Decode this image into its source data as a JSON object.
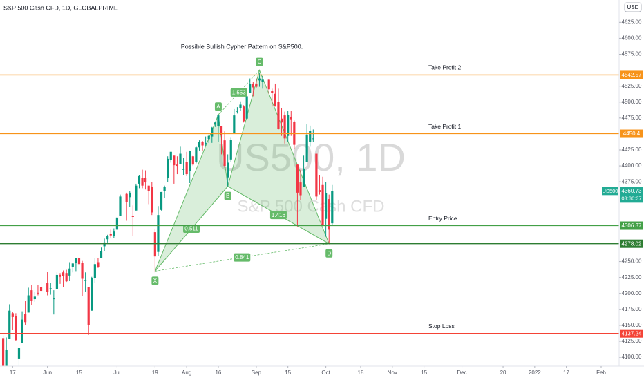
{
  "chart_data": {
    "type": "candlestick",
    "header": "S&P 500 Cash CFD, 1D, GLOBALPRIME",
    "title": "Possible Bullish Cypher Pattern on S&P500.",
    "watermark": "US500, 1D",
    "watermark_subtitle": "S&P 500 Cash CFD",
    "currency": "USD",
    "up_color": "#089981",
    "down_color": "#f23645",
    "xlim": [
      "2021-05-11",
      "2022-02-01"
    ],
    "ylim": [
      4086,
      4660
    ],
    "x": [
      "2021-05-12",
      "2021-05-13",
      "2021-05-14",
      "2021-05-17",
      "2021-05-18",
      "2021-05-19",
      "2021-05-20",
      "2021-05-21",
      "2021-05-24",
      "2021-05-25",
      "2021-05-26",
      "2021-05-27",
      "2021-05-28",
      "2021-06-01",
      "2021-06-02",
      "2021-06-03",
      "2021-06-04",
      "2021-06-07",
      "2021-06-08",
      "2021-06-09",
      "2021-06-10",
      "2021-06-11",
      "2021-06-14",
      "2021-06-15",
      "2021-06-16",
      "2021-06-17",
      "2021-06-18",
      "2021-06-21",
      "2021-06-22",
      "2021-06-23",
      "2021-06-24",
      "2021-06-25",
      "2021-06-28",
      "2021-06-29",
      "2021-06-30",
      "2021-07-01",
      "2021-07-02",
      "2021-07-06",
      "2021-07-07",
      "2021-07-08",
      "2021-07-09",
      "2021-07-12",
      "2021-07-13",
      "2021-07-14",
      "2021-07-15",
      "2021-07-16",
      "2021-07-19",
      "2021-07-20",
      "2021-07-21",
      "2021-07-22",
      "2021-07-23",
      "2021-07-26",
      "2021-07-27",
      "2021-07-28",
      "2021-07-29",
      "2021-07-30",
      "2021-08-02",
      "2021-08-03",
      "2021-08-04",
      "2021-08-05",
      "2021-08-06",
      "2021-08-09",
      "2021-08-10",
      "2021-08-11",
      "2021-08-12",
      "2021-08-13",
      "2021-08-16",
      "2021-08-17",
      "2021-08-18",
      "2021-08-19",
      "2021-08-20",
      "2021-08-23",
      "2021-08-24",
      "2021-08-25",
      "2021-08-26",
      "2021-08-27",
      "2021-08-30",
      "2021-08-31",
      "2021-09-01",
      "2021-09-02",
      "2021-09-03",
      "2021-09-07",
      "2021-09-08",
      "2021-09-09",
      "2021-09-10",
      "2021-09-13",
      "2021-09-14",
      "2021-09-15",
      "2021-09-16",
      "2021-09-17",
      "2021-09-20",
      "2021-09-21",
      "2021-09-22",
      "2021-09-23",
      "2021-09-24",
      "2021-09-27",
      "2021-09-28",
      "2021-09-29",
      "2021-09-30",
      "2021-10-01",
      "2021-10-04",
      "2021-10-05"
    ],
    "open": [
      4130,
      4074,
      4129,
      4169,
      4165,
      4098,
      4122,
      4168,
      4170,
      4205,
      4191,
      4201,
      4210,
      4216,
      4207,
      4191,
      4207,
      4229,
      4233,
      4232,
      4228,
      4242,
      4248,
      4255,
      4248,
      4220,
      4210,
      4173,
      4224,
      4249,
      4256,
      4274,
      4285,
      4293,
      4290,
      4300,
      4322,
      4356,
      4351,
      4322,
      4330,
      4372,
      4381,
      4381,
      4369,
      4367,
      4296,
      4265,
      4331,
      4361,
      4381,
      4409,
      4416,
      4402,
      4403,
      4395,
      4406,
      4392,
      4415,
      4406,
      4429,
      4437,
      4435,
      4442,
      4446,
      4465,
      4462,
      4462,
      4440,
      4382,
      4410,
      4450,
      4485,
      4490,
      4493,
      4474,
      4514,
      4529,
      4528,
      4534,
      4532,
      4535,
      4518,
      4513,
      4500,
      4474,
      4479,
      4447,
      4477,
      4469,
      4402,
      4374,
      4367,
      4406,
      4438,
      4443,
      4419,
      4362,
      4370,
      4317,
      4348,
      4310
    ],
    "high": [
      4134,
      4131,
      4183,
      4171,
      4169,
      4116,
      4172,
      4188,
      4209,
      4213,
      4202,
      4213,
      4218,
      4234,
      4217,
      4205,
      4233,
      4232,
      4236,
      4237,
      4249,
      4248,
      4255,
      4257,
      4251,
      4233,
      4210,
      4226,
      4256,
      4256,
      4272,
      4286,
      4292,
      4300,
      4302,
      4320,
      4355,
      4358,
      4361,
      4338,
      4372,
      4386,
      4394,
      4393,
      4369,
      4375,
      4301,
      4337,
      4359,
      4369,
      4415,
      4422,
      4416,
      4415,
      4430,
      4412,
      4422,
      4424,
      4416,
      4430,
      4440,
      4439,
      4446,
      4449,
      4461,
      4468,
      4480,
      4462,
      4454,
      4418,
      4444,
      4489,
      4492,
      4501,
      4495,
      4513,
      4537,
      4532,
      4537,
      4545,
      4541,
      4536,
      4521,
      4529,
      4521,
      4491,
      4485,
      4486,
      4486,
      4471,
      4402,
      4394,
      4416,
      4465,
      4463,
      4457,
      4419,
      4385,
      4383,
      4375,
      4355,
      4370
    ],
    "low": [
      4056,
      4074,
      4129,
      4143,
      4125,
      4062,
      4122,
      4151,
      4170,
      4182,
      4187,
      4197,
      4203,
      4197,
      4198,
      4167,
      4207,
      4215,
      4210,
      4218,
      4220,
      4233,
      4235,
      4238,
      4196,
      4203,
      4135,
      4173,
      4217,
      4240,
      4256,
      4266,
      4280,
      4287,
      4287,
      4300,
      4322,
      4314,
      4336,
      4290,
      4330,
      4365,
      4365,
      4363,
      4340,
      4323,
      4233,
      4259,
      4330,
      4350,
      4375,
      4405,
      4372,
      4387,
      4403,
      4386,
      4384,
      4373,
      4400,
      4404,
      4424,
      4424,
      4431,
      4436,
      4436,
      4461,
      4437,
      4418,
      4397,
      4368,
      4406,
      4450,
      4482,
      4486,
      4468,
      4473,
      4514,
      4509,
      4522,
      4524,
      4521,
      4513,
      4493,
      4493,
      4457,
      4447,
      4435,
      4438,
      4447,
      4427,
      4305,
      4347,
      4367,
      4406,
      4430,
      4437,
      4346,
      4355,
      4306,
      4289,
      4279,
      4308
    ],
    "close": [
      4063,
      4112,
      4173,
      4163,
      4127,
      4115,
      4159,
      4155,
      4197,
      4188,
      4195,
      4200,
      4204,
      4202,
      4208,
      4192,
      4229,
      4226,
      4227,
      4219,
      4239,
      4247,
      4255,
      4246,
      4223,
      4221,
      4150,
      4224,
      4246,
      4241,
      4266,
      4280,
      4290,
      4291,
      4297,
      4319,
      4352,
      4343,
      4358,
      4320,
      4369,
      4384,
      4369,
      4374,
      4360,
      4327,
      4258,
      4323,
      4359,
      4367,
      4411,
      4422,
      4401,
      4400,
      4419,
      4395,
      4387,
      4423,
      4402,
      4429,
      4437,
      4432,
      4436,
      4447,
      4460,
      4468,
      4479,
      4448,
      4400,
      4405,
      4441,
      4479,
      4486,
      4496,
      4470,
      4509,
      4528,
      4523,
      4524,
      4537,
      4535,
      4520,
      4514,
      4493,
      4458,
      4468,
      4443,
      4480,
      4473,
      4433,
      4358,
      4354,
      4395,
      4449,
      4455,
      4443,
      4352,
      4359,
      4307,
      4357,
      4300,
      4360.73
    ],
    "last": {
      "symbol": "US500",
      "value": 4360.73,
      "countdown": "03:36:37",
      "color": "#22ab94"
    },
    "yticks": [
      {
        "value": 4100,
        "label": "4100.00"
      },
      {
        "value": 4125,
        "label": "4125.00"
      },
      {
        "value": 4150,
        "label": "4150.00"
      },
      {
        "value": 4175,
        "label": "4175.00"
      },
      {
        "value": 4200,
        "label": "4200.00"
      },
      {
        "value": 4225,
        "label": "4225.00"
      },
      {
        "value": 4250,
        "label": "4250.00"
      },
      {
        "value": 4375,
        "label": "4375.00"
      },
      {
        "value": 4400,
        "label": "4400.00"
      },
      {
        "value": 4425,
        "label": "4425.00"
      },
      {
        "value": 4475,
        "label": "4475.00"
      },
      {
        "value": 4500,
        "label": "4500.00"
      },
      {
        "value": 4525,
        "label": "4525.00"
      },
      {
        "value": 4575,
        "label": "4575.00"
      },
      {
        "value": 4600,
        "label": "4600.00"
      },
      {
        "value": 4625,
        "label": "4625.00"
      }
    ],
    "xticks": [
      {
        "value": "2021-05-17",
        "label": "17"
      },
      {
        "value": "2021-06-01",
        "label": "Jun"
      },
      {
        "value": "2021-06-15",
        "label": "15"
      },
      {
        "value": "2021-07-01",
        "label": "Jul"
      },
      {
        "value": "2021-07-19",
        "label": "19"
      },
      {
        "value": "2021-08-02",
        "label": "Aug"
      },
      {
        "value": "2021-08-16",
        "label": "16"
      },
      {
        "value": "2021-09-01",
        "label": "Sep"
      },
      {
        "value": "2021-09-15",
        "label": "15"
      },
      {
        "value": "2021-10-01",
        "label": "Oct"
      },
      {
        "value": "2021-10-18",
        "label": "18"
      },
      {
        "value": "2021-11-01",
        "label": "Nov"
      },
      {
        "value": "2021-11-15",
        "label": "15"
      },
      {
        "value": "2021-12-01",
        "label": "Dec"
      },
      {
        "value": "2021-12-20",
        "label": "20"
      },
      {
        "value": "2022-01-03",
        "label": "2022"
      },
      {
        "value": "2022-01-17",
        "label": "17"
      },
      {
        "value": "2022-02-01",
        "label": "Feb"
      }
    ],
    "levels": [
      {
        "label": "Take Profit 2",
        "value": 4542.57,
        "color": "#f7931a"
      },
      {
        "label": "Take Profit 1",
        "value": 4450.4,
        "color": "#f7931a"
      },
      {
        "label": "Entry Price",
        "value": 4306.37,
        "color": "#43a047"
      },
      {
        "value": 4278.02,
        "color": "#2e7d32"
      },
      {
        "label": "Stop Loss",
        "value": 4137.24,
        "color": "#f44336"
      }
    ],
    "pattern": {
      "color": "#66bb6a",
      "points": [
        {
          "label": "X",
          "x": "2021-07-19",
          "y": 4235
        },
        {
          "label": "A",
          "x": "2021-08-16",
          "y": 4480
        },
        {
          "label": "B",
          "x": "2021-08-19",
          "y": 4368
        },
        {
          "label": "C",
          "x": "2021-09-02",
          "y": 4550
        },
        {
          "label": "D",
          "x": "2021-10-04",
          "y": 4278
        }
      ],
      "ratios": [
        1.553,
        0.511,
        1.416,
        0.841
      ]
    }
  }
}
